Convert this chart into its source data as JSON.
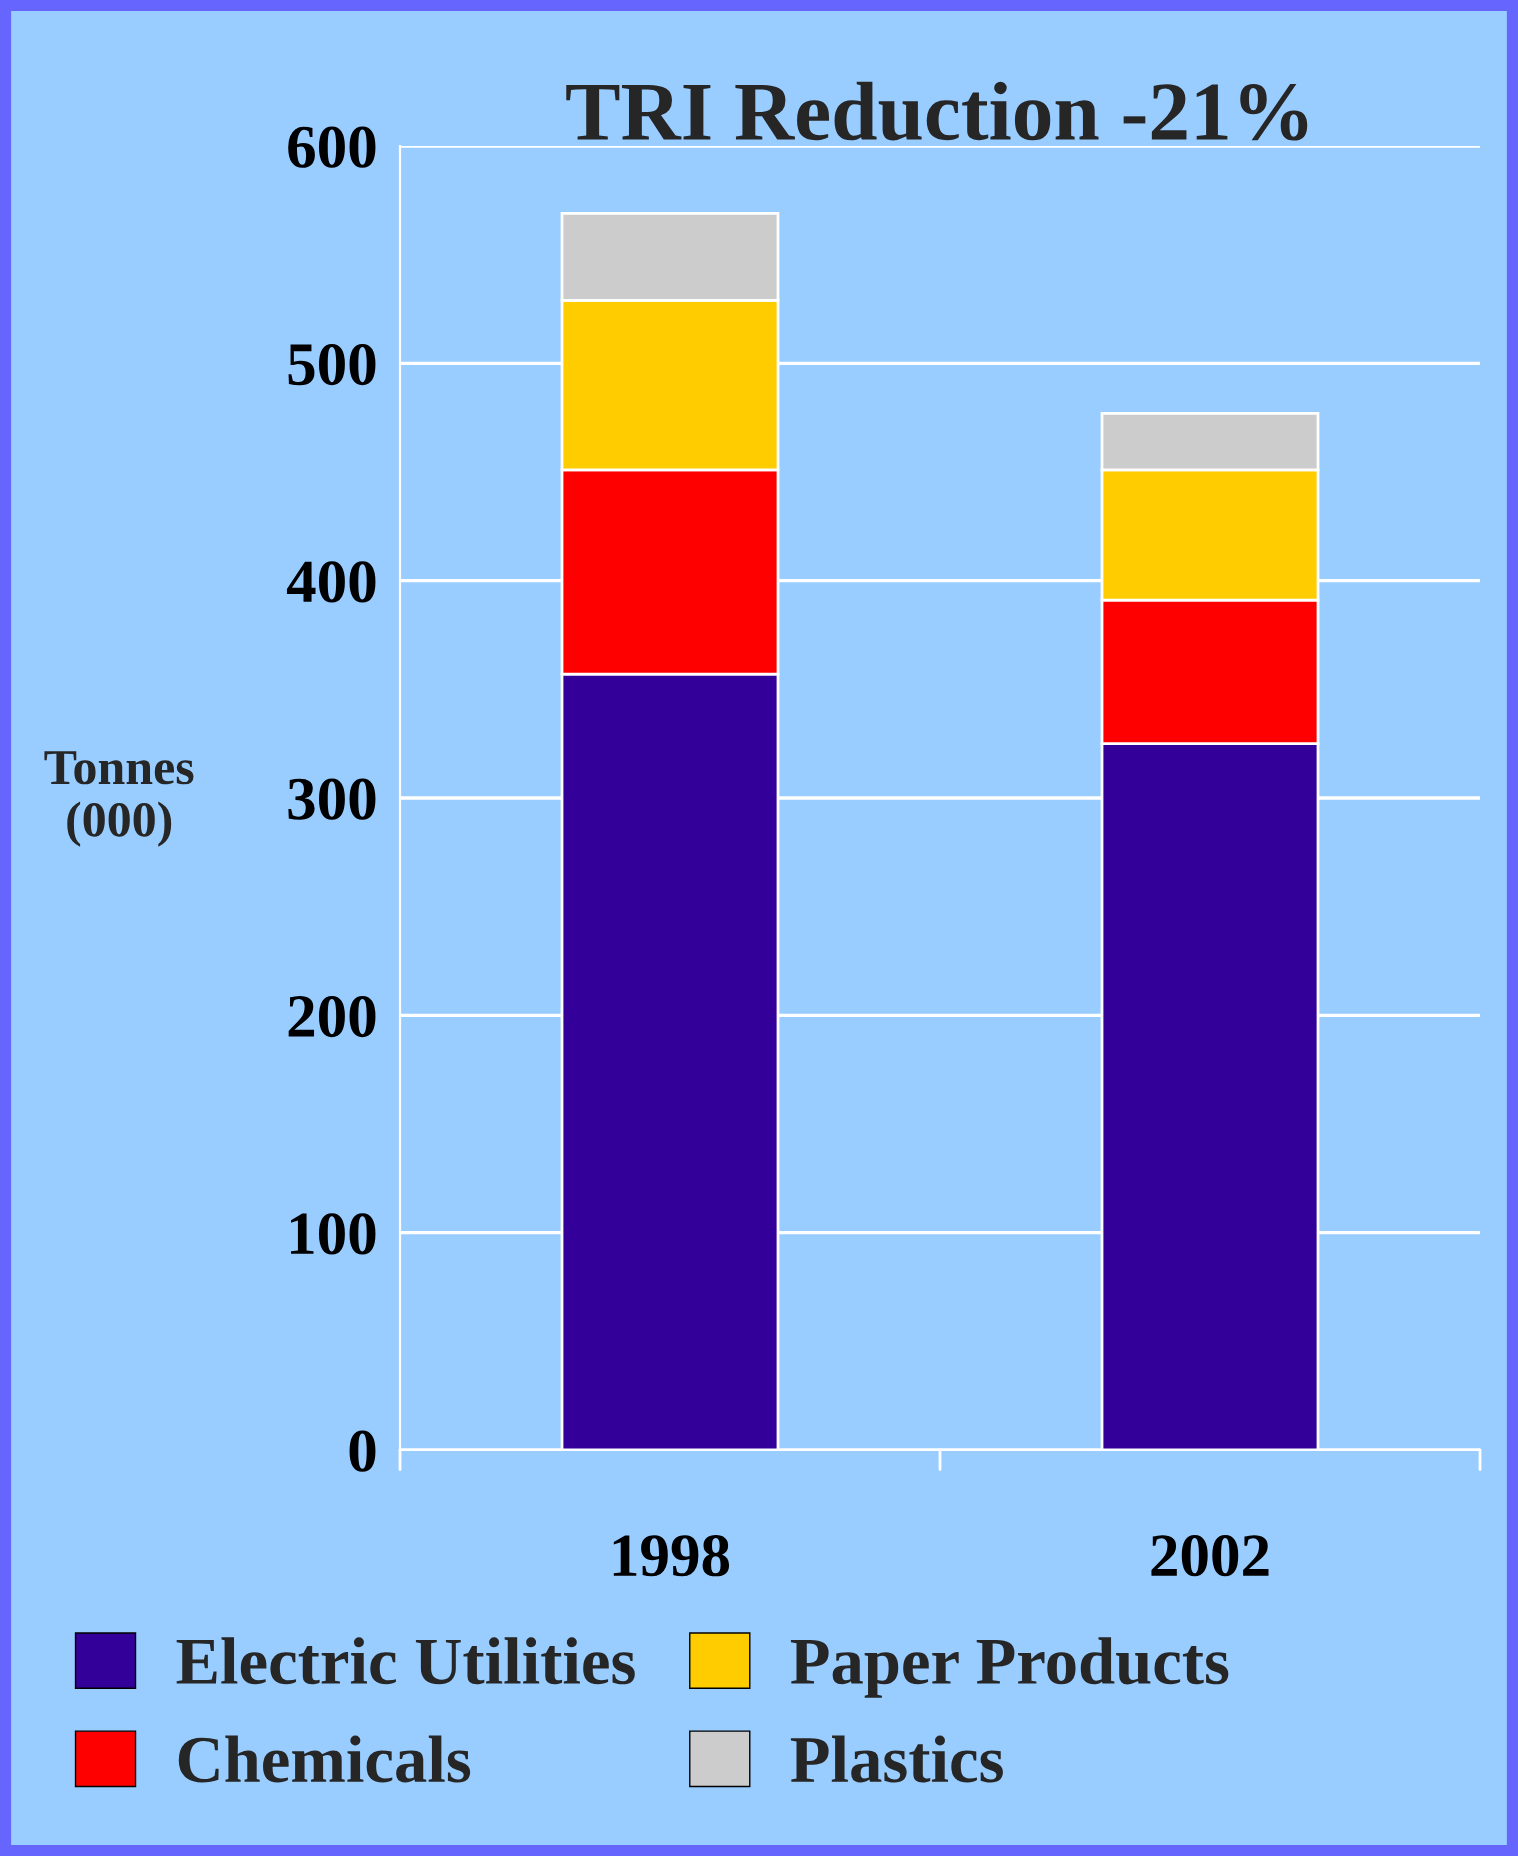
{
  "chart_data": {
    "type": "bar",
    "title": "TRI Reduction -21%",
    "ylabel": "Tonnes\n(000)",
    "categories": [
      "1998",
      "2002"
    ],
    "stacked": true,
    "series": [
      {
        "name": "Electric Utilities",
        "color": "#330099",
        "values": [
          357,
          325
        ]
      },
      {
        "name": "Chemicals",
        "color": "#ff0000",
        "values": [
          94,
          66
        ]
      },
      {
        "name": "Paper Products",
        "color": "#ffcc00",
        "values": [
          78,
          60
        ]
      },
      {
        "name": "Plastics",
        "color": "#cccccc",
        "values": [
          40,
          26
        ]
      }
    ],
    "ylim": [
      0,
      600
    ],
    "yticks": [
      0,
      100,
      200,
      300,
      400,
      500,
      600
    ],
    "grid": "y",
    "legend": "bottom"
  }
}
